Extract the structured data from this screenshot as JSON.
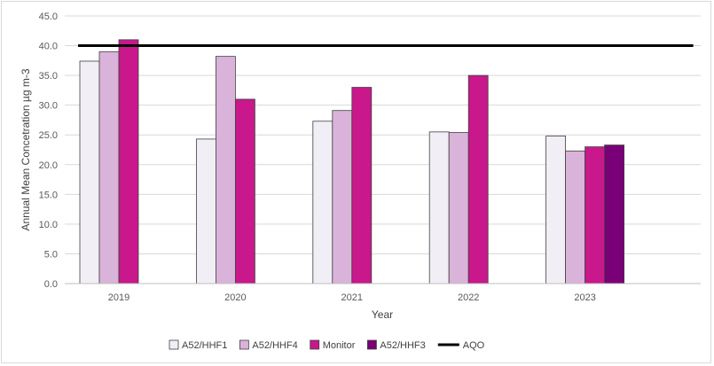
{
  "chart_data": {
    "type": "bar",
    "title": "",
    "xlabel": "Year",
    "ylabel": "Annual Mean Concetration µg m-3",
    "ylim": [
      0,
      45
    ],
    "ytick_step": 5,
    "ytick_labels": [
      "0.0",
      "5.0",
      "10.0",
      "15.0",
      "20.0",
      "25.0",
      "30.0",
      "35.0",
      "40.0",
      "45.0"
    ],
    "grid": true,
    "legend_position": "bottom",
    "categories": [
      "2019",
      "2020",
      "2021",
      "2022",
      "2023"
    ],
    "series": [
      {
        "name": "A52/HHF1",
        "color": "#f2eef5",
        "values": [
          37.4,
          24.3,
          27.3,
          25.5,
          24.8
        ]
      },
      {
        "name": "A52/HHF4",
        "color": "#d9b3d9",
        "values": [
          39.0,
          38.2,
          29.1,
          25.4,
          22.3
        ]
      },
      {
        "name": "Monitor",
        "color": "#c8188c",
        "values": [
          41.0,
          31.0,
          33.0,
          35.0,
          23.0
        ]
      },
      {
        "name": "A52/HHF3",
        "color": "#7a0077",
        "values": [
          null,
          null,
          null,
          null,
          23.3
        ]
      }
    ],
    "reference_line": {
      "name": "AQO",
      "value": 40,
      "color": "#000000"
    }
  }
}
